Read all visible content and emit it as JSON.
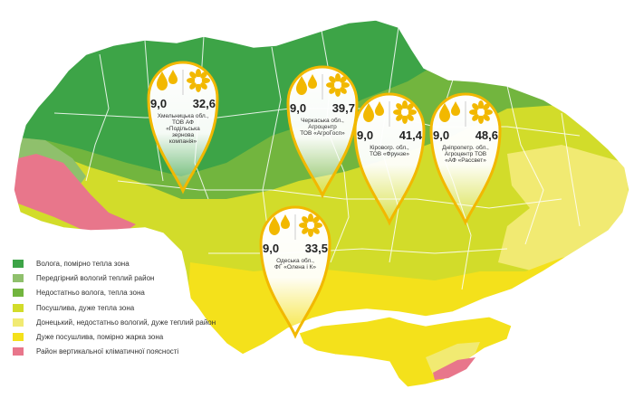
{
  "colors": {
    "humid_warm": "#3da447",
    "foothill_humid": "#8fc06c",
    "insufficient_humid": "#72b53e",
    "arid_very_warm": "#d2dc2a",
    "donetsk": "#f1ea72",
    "very_arid": "#f4e11b",
    "vertical_zone": "#e8768b",
    "pin_outline": "#f2b800"
  },
  "legend": [
    {
      "label": "Волога, помірно тепла зона",
      "color": "#3da447"
    },
    {
      "label": "Передгірний вологий теплий район",
      "color": "#8fc06c"
    },
    {
      "label": "Недостатньо волога, тепла зона",
      "color": "#72b53e"
    },
    {
      "label": "Посушлива, дуже тепла зона",
      "color": "#d2dc2a"
    },
    {
      "label": "Донецький, недостатньо вологий, дуже теплий район",
      "color": "#f1ea72"
    },
    {
      "label": "Дуже посушлива, помірно жарка зона",
      "color": "#f4e11b"
    },
    {
      "label": "Район вертикальної кліматичної поясності",
      "color": "#e8768b"
    }
  ],
  "pins": [
    {
      "icons": [
        "drops-icon",
        "sunflower-icon"
      ],
      "left_value": "9,0",
      "right_value": "32,6",
      "label": "Хмельницька обл.,\nТОВ АФ\n«Подільська\nзернова\nкомпанія»"
    },
    {
      "icons": [
        "drops-icon",
        "sunflower-icon"
      ],
      "left_value": "9,0",
      "right_value": "39,7",
      "label": "Черкаська обл.,\nАгроцентр\nТОВ «АгроГосп»"
    },
    {
      "icons": [
        "drops-icon",
        "sunflower-icon"
      ],
      "left_value": "9,0",
      "right_value": "41,4",
      "label": "Кіровогр. обл.,\nТОВ «Фрунзе»"
    },
    {
      "icons": [
        "drops-icon",
        "sunflower-icon"
      ],
      "left_value": "9,0",
      "right_value": "48,6",
      "label": "Дніпропетр. обл.,\nАгроцентр ТОВ\n«АФ «Рассвет»"
    },
    {
      "icons": [
        "drops-icon",
        "sunflower-icon"
      ],
      "left_value": "9,0",
      "right_value": "33,5",
      "label": "Одеська обл.,\nФГ «Олена і К»"
    }
  ]
}
